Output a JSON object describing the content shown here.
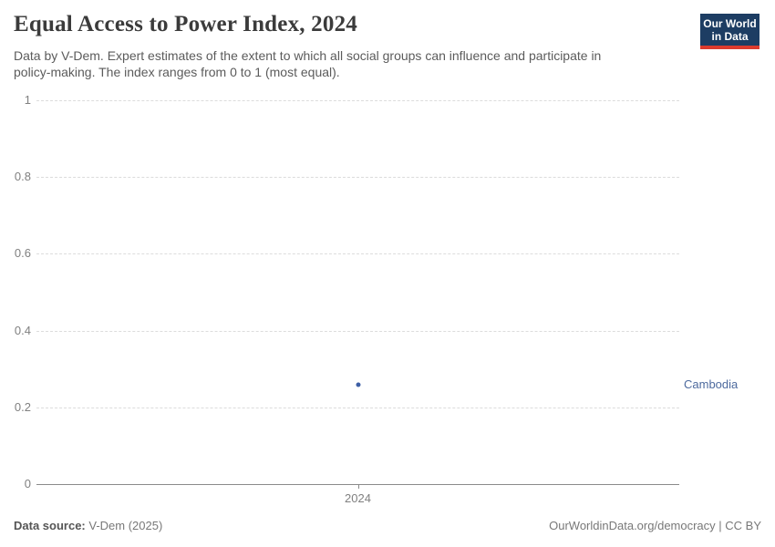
{
  "header": {
    "title": "Equal Access to Power Index, 2024",
    "subtitle_lines": [
      "Data by V-Dem. Expert estimates of the extent to which all social groups can influence and participate in",
      "policy-making. The index ranges from 0 to 1 (most equal)."
    ],
    "logo": {
      "line1": "Our World",
      "line2": "in Data",
      "bg_color": "#1d3d63",
      "bar_color": "#dc3b2e"
    }
  },
  "chart_data": {
    "type": "scatter",
    "title": "Equal Access to Power Index, 2024",
    "x": [
      2024
    ],
    "xtick_labels": [
      "2024"
    ],
    "series": [
      {
        "name": "Cambodia",
        "values": [
          0.26
        ],
        "color": "#3d5fa5",
        "label_color": "#4d6a9e"
      }
    ],
    "xlabel": "",
    "ylabel": "",
    "ylim": [
      0,
      1
    ],
    "yticks": [
      0,
      0.2,
      0.4,
      0.6,
      0.8,
      1
    ],
    "ytick_labels": [
      "0",
      "0.2",
      "0.4",
      "0.6",
      "0.8",
      "1"
    ],
    "grid": true,
    "gridline_color": "#dcdcdc",
    "axis_color": "#8a8a8a",
    "legend_position": "entity-label-right"
  },
  "footer": {
    "source_label": "Data source:",
    "source_value": " V-Dem (2025)",
    "credit": "OurWorldinData.org/democracy | CC BY"
  }
}
